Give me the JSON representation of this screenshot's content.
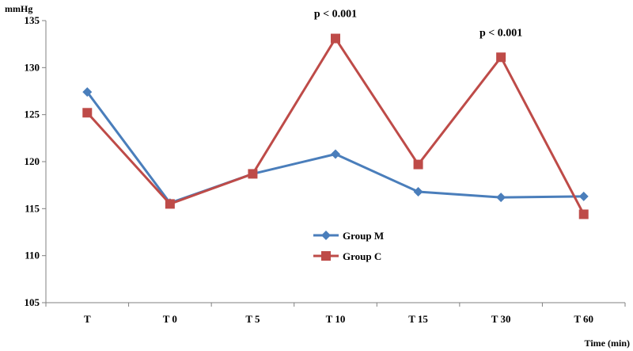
{
  "chart_data": {
    "type": "line",
    "categories": [
      "T",
      "T 0",
      "T 5",
      "T 10",
      "T 15",
      "T 30",
      "T 60"
    ],
    "series": [
      {
        "name": "Group M",
        "color": "#4a7ebb",
        "marker": "diamond",
        "values": [
          127.4,
          115.6,
          118.7,
          120.8,
          116.8,
          116.2,
          116.3
        ]
      },
      {
        "name": "Group C",
        "color": "#be4b48",
        "marker": "square",
        "values": [
          125.2,
          115.5,
          118.7,
          133.1,
          119.7,
          131.1,
          114.4
        ]
      }
    ],
    "xlabel": "Time (min)",
    "ylabel": "mmHg",
    "ylim": [
      105,
      135
    ],
    "yticks": [
      105,
      110,
      115,
      120,
      125,
      130,
      135
    ],
    "grid": false,
    "legend_position": "lower-center",
    "annotations": [
      {
        "text": "p < 0.001",
        "category": "T 10"
      },
      {
        "text": "p < 0.001",
        "category": "T 30"
      }
    ]
  }
}
